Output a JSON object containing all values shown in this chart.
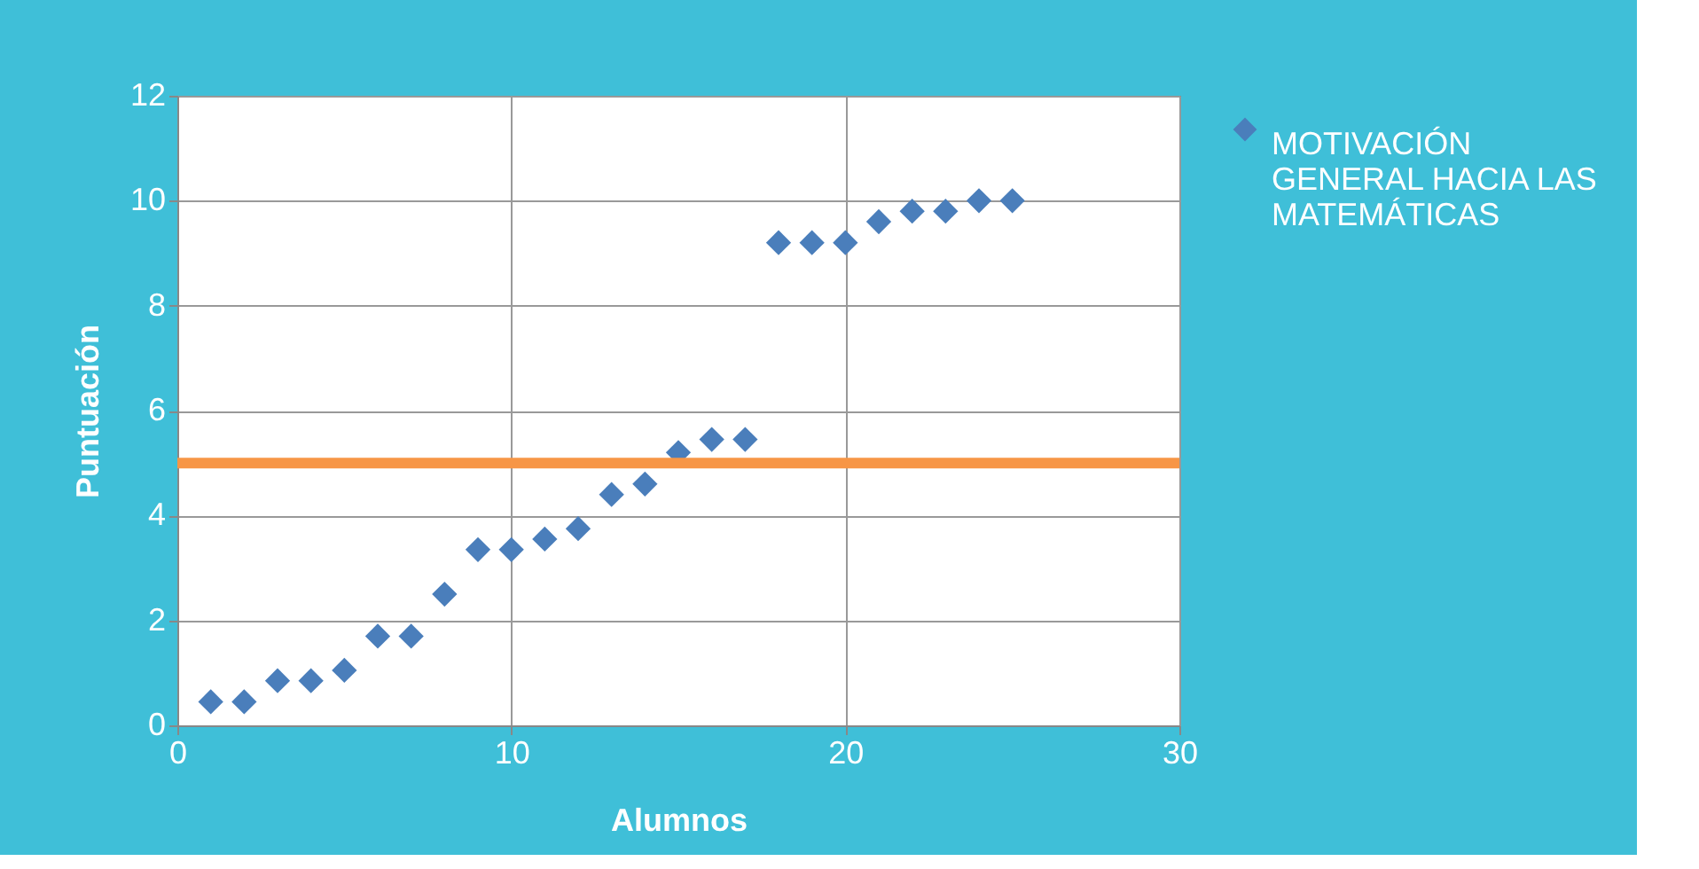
{
  "chart_data": {
    "type": "scatter",
    "xlabel": "Alumnos",
    "ylabel": "Puntuación",
    "x": [
      1,
      2,
      3,
      4,
      5,
      6,
      7,
      8,
      9,
      10,
      11,
      12,
      13,
      14,
      15,
      16,
      17,
      18,
      19,
      20,
      21,
      22,
      23,
      24,
      25
    ],
    "series": [
      {
        "name": "MOTIVACIÓN GENERAL HACIA LAS MATEMÁTICAS",
        "color": "#4a7ebb",
        "values": [
          0.45,
          0.45,
          0.85,
          0.85,
          1.05,
          1.7,
          1.7,
          2.5,
          3.35,
          3.35,
          3.55,
          3.75,
          4.4,
          4.6,
          5.2,
          5.45,
          5.45,
          9.2,
          9.2,
          9.2,
          9.6,
          9.8,
          9.8,
          10.0,
          10.0
        ]
      }
    ],
    "ref_lines": [
      {
        "axis": "y",
        "value": 5,
        "color": "#f79646",
        "line_style": "solid"
      }
    ],
    "xlim": [
      0,
      30
    ],
    "xticks": [
      0,
      10,
      20,
      30
    ],
    "ylim": [
      0,
      12
    ],
    "yticks": [
      0,
      2,
      4,
      6,
      8,
      10,
      12
    ],
    "grid": true,
    "legend": "right",
    "marker": "diamond"
  }
}
